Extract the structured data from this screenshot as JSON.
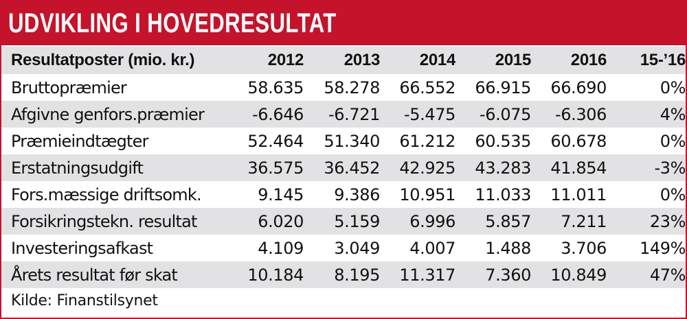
{
  "title": "UDVIKLING I HOVEDRESULTAT",
  "table": {
    "columns": [
      "Resultatposter (mio. kr.)",
      "2012",
      "2013",
      "2014",
      "2015",
      "2016",
      "15-’16"
    ],
    "rows": [
      [
        "Bruttopræmier",
        "58.635",
        "58.278",
        "66.552",
        "66.915",
        "66.690",
        "0%"
      ],
      [
        "Afgivne genfors.præmier",
        "-6.646",
        "-6.721",
        "-5.475",
        "-6.075",
        "-6.306",
        "4%"
      ],
      [
        "Præmieindtægter",
        "52.464",
        "51.340",
        "61.212",
        "60.535",
        "60.678",
        "0%"
      ],
      [
        "Erstatningsudgift",
        "36.575",
        "36.452",
        "42.925",
        "43.283",
        "41.854",
        "-3%"
      ],
      [
        "Fors.mæssige driftsomk.",
        "9.145",
        "9.386",
        "10.951",
        "11.033",
        "11.011",
        "0%"
      ],
      [
        "Forsikringstekn. resultat",
        "6.020",
        "5.159",
        "6.996",
        "5.857",
        "7.211",
        "23%"
      ],
      [
        "Investeringsafkast",
        "4.109",
        "3.049",
        "4.007",
        "1.488",
        "3.706",
        "149%"
      ],
      [
        "Årets resultat før skat",
        "10.184",
        "8.195",
        "11.317",
        "7.360",
        "10.849",
        "47%"
      ]
    ]
  },
  "source": "Kilde: Finanstilsynet",
  "colors": {
    "accent": "#c4132b",
    "stripe": "#e2e2e4",
    "text": "#111111"
  }
}
